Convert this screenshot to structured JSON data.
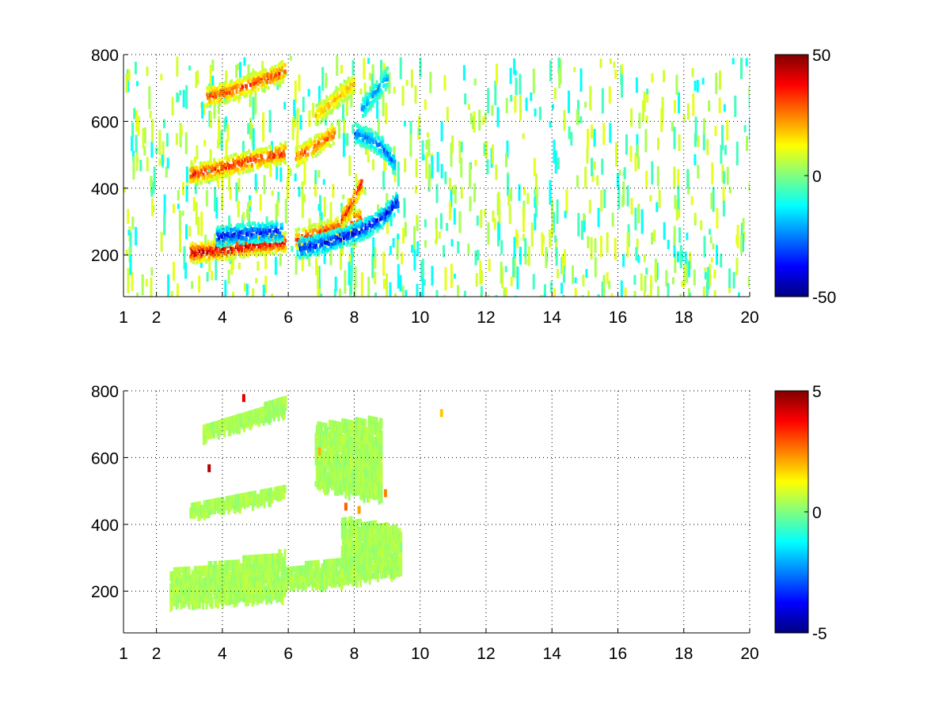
{
  "chart_data": [
    {
      "type": "heatmap",
      "title": "",
      "xlabel": "",
      "ylabel": "",
      "xlim": [
        1,
        20
      ],
      "ylim": [
        75,
        800
      ],
      "x_ticks": [
        1,
        2,
        4,
        6,
        8,
        10,
        12,
        14,
        16,
        18,
        20
      ],
      "x_tick_labels": [
        "1",
        "2",
        "4",
        "6",
        "8",
        "10",
        "12",
        "14",
        "16",
        "18",
        "20"
      ],
      "y_ticks": [
        200,
        400,
        600,
        800
      ],
      "y_tick_labels": [
        "200",
        "400",
        "600",
        "800"
      ],
      "grid": true,
      "colormap": "jet",
      "clim": [
        -50,
        50
      ],
      "colorbar_ticks": [
        -50,
        0,
        50
      ],
      "colorbar_tick_labels": [
        "-50",
        "0",
        "50"
      ],
      "tracks": [
        {
          "x": [
            3.0,
            3.5,
            4.0,
            4.5,
            5.0,
            5.5,
            5.9
          ],
          "y": [
            212,
            215,
            222,
            228,
            235,
            240,
            243
          ],
          "value": 45
        },
        {
          "x": [
            3.8,
            4.2,
            4.6,
            5.0,
            5.4,
            5.8
          ],
          "y": [
            258,
            264,
            268,
            272,
            274,
            276
          ],
          "value": -40
        },
        {
          "x": [
            6.2,
            6.6,
            7.0,
            7.4,
            7.8,
            8.2
          ],
          "y": [
            250,
            262,
            275,
            286,
            300,
            318
          ],
          "value": 35
        },
        {
          "x": [
            6.3,
            6.8,
            7.3,
            7.8,
            8.3,
            8.8,
            9.3
          ],
          "y": [
            225,
            235,
            248,
            265,
            285,
            315,
            365
          ],
          "value": -42
        },
        {
          "x": [
            7.6,
            7.9,
            8.2
          ],
          "y": [
            310,
            360,
            420
          ],
          "value": 40
        },
        {
          "x": [
            3.0,
            3.5,
            4.0,
            4.5,
            5.0,
            5.5,
            5.9
          ],
          "y": [
            445,
            455,
            468,
            480,
            492,
            503,
            512
          ],
          "value": 38
        },
        {
          "x": [
            6.2,
            6.6,
            7.0,
            7.4
          ],
          "y": [
            500,
            520,
            545,
            570
          ],
          "value": 32
        },
        {
          "x": [
            8.0,
            8.4,
            8.8,
            9.2
          ],
          "y": [
            570,
            555,
            530,
            480
          ],
          "value": -30
        },
        {
          "x": [
            3.5,
            4.0,
            4.5,
            5.0,
            5.5,
            5.9
          ],
          "y": [
            678,
            690,
            705,
            722,
            740,
            758
          ],
          "value": 35
        },
        {
          "x": [
            6.8,
            7.2,
            7.6,
            8.0
          ],
          "y": [
            620,
            655,
            690,
            720
          ],
          "value": 22
        },
        {
          "x": [
            8.2,
            8.6,
            9.0
          ],
          "y": [
            640,
            690,
            740
          ],
          "value": -25
        }
      ],
      "noise": {
        "x_range": [
          1,
          20
        ],
        "y_range": [
          75,
          800
        ],
        "values": [
          -12,
          -6,
          4,
          8,
          10
        ]
      }
    },
    {
      "type": "heatmap",
      "title": "",
      "xlabel": "",
      "ylabel": "",
      "xlim": [
        1,
        20
      ],
      "ylim": [
        75,
        800
      ],
      "x_ticks": [
        1,
        2,
        4,
        6,
        8,
        10,
        12,
        14,
        16,
        18,
        20
      ],
      "x_tick_labels": [
        "1",
        "2",
        "4",
        "6",
        "8",
        "10",
        "12",
        "14",
        "16",
        "18",
        "20"
      ],
      "y_ticks": [
        200,
        400,
        600,
        800
      ],
      "y_tick_labels": [
        "200",
        "400",
        "600",
        "800"
      ],
      "grid": true,
      "colormap": "jet",
      "clim": [
        -5,
        5
      ],
      "colorbar_ticks": [
        -5,
        0,
        5
      ],
      "colorbar_tick_labels": [
        "-5",
        "0",
        "5"
      ],
      "regions": [
        {
          "x": [
            2.4,
            5.9
          ],
          "y_low": [
            165,
            185
          ],
          "y_high": [
            260,
            320
          ],
          "value": 0.4
        },
        {
          "x": [
            5.9,
            7.6
          ],
          "y_low": [
            215,
            230
          ],
          "y_high": [
            270,
            300
          ],
          "value": 0.4
        },
        {
          "x": [
            7.6,
            9.4
          ],
          "y_low": [
            230,
            260
          ],
          "y_high": [
            420,
            390
          ],
          "value": 0.4
        },
        {
          "x": [
            3.0,
            5.9
          ],
          "y_low": [
            430,
            485
          ],
          "y_high": [
            460,
            520
          ],
          "value": 0.4
        },
        {
          "x": [
            6.8,
            8.8
          ],
          "y_low": [
            520,
            480
          ],
          "y_high": [
            700,
            720
          ],
          "value": 0.4
        },
        {
          "x": [
            3.4,
            5.9
          ],
          "y_low": [
            665,
            740
          ],
          "y_high": [
            690,
            780
          ],
          "value": 0.4
        }
      ],
      "highlights": [
        {
          "x": 7.7,
          "y": 465,
          "value": 2.8
        },
        {
          "x": 8.1,
          "y": 455,
          "value": 2.2
        },
        {
          "x": 8.9,
          "y": 505,
          "value": 2.5
        },
        {
          "x": 6.9,
          "y": 630,
          "value": 2.0
        },
        {
          "x": 3.55,
          "y": 580,
          "value": 4.5
        },
        {
          "x": 4.6,
          "y": 790,
          "value": 4.0
        },
        {
          "x": 10.6,
          "y": 745,
          "value": 1.8
        }
      ]
    }
  ]
}
